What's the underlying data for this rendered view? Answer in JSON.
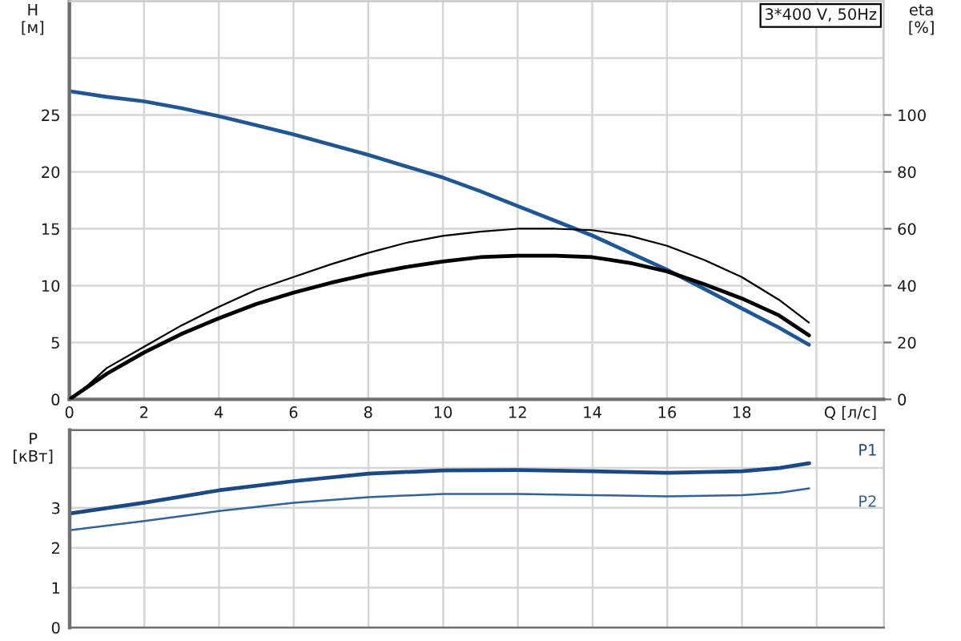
{
  "chart_data": [
    {
      "type": "line",
      "title": "3*400 V, 50Hz",
      "xlabel": "Q [л/с]",
      "ylabel": "H\n[м]",
      "y2label": "eta\n[%]",
      "xlim": [
        0,
        21.8
      ],
      "xticks": [
        0,
        2,
        4,
        6,
        8,
        10,
        12,
        14,
        16,
        18,
        {
          "value": 20,
          "label": null
        }
      ],
      "ylim": [
        0,
        35
      ],
      "yticks": [
        0,
        5,
        10,
        15,
        20,
        25,
        {
          "value": 30,
          "label": null
        }
      ],
      "y2lim": [
        0,
        140
      ],
      "y2ticks": [
        0,
        20,
        40,
        60,
        80,
        100
      ],
      "grid": true,
      "series": [
        {
          "color": "#1f5796",
          "x": [
            0,
            1,
            2,
            3,
            4,
            5,
            6,
            7,
            8,
            9,
            10,
            11,
            12,
            13,
            14,
            15,
            16,
            17,
            18,
            19,
            19.8
          ],
          "values": [
            27.1,
            26.6,
            26.2,
            25.6,
            24.9,
            24.1,
            23.3,
            22.4,
            21.5,
            20.5,
            19.5,
            18.3,
            17.0,
            15.7,
            14.4,
            12.9,
            11.4,
            9.7,
            8.0,
            6.3,
            4.8
          ]
        },
        {
          "color": "#000000",
          "axis": "y2",
          "x": [
            0,
            0.5,
            1,
            2,
            3,
            4,
            5,
            6,
            7,
            8,
            9,
            10,
            11,
            12,
            13,
            14,
            15,
            16,
            17,
            18,
            19,
            19.8
          ],
          "values": [
            0,
            5,
            11,
            18.5,
            26,
            32.5,
            38.5,
            43,
            47.5,
            51.5,
            55,
            57.5,
            59,
            60,
            60,
            59.5,
            57.5,
            54,
            49,
            43,
            35,
            27
          ]
        },
        {
          "color": "#000000",
          "axis": "y2",
          "x": [
            0,
            0.5,
            1,
            2,
            3,
            4,
            5,
            6,
            7,
            8,
            9,
            10,
            11,
            12,
            13,
            14,
            15,
            16,
            17,
            18,
            19,
            19.8
          ],
          "values": [
            0,
            4.5,
            9,
            16.5,
            23,
            28.5,
            33.5,
            37.5,
            41,
            44,
            46.5,
            48.5,
            50,
            50.5,
            50.5,
            50,
            48,
            45,
            40.5,
            35.5,
            29.5,
            22.5
          ]
        }
      ]
    },
    {
      "type": "line",
      "ylabel": "P\n[кВт]",
      "xlim": [
        0,
        21.8
      ],
      "xticks": [
        0,
        2,
        4,
        6,
        8,
        10,
        12,
        14,
        16,
        18,
        {
          "value": 20,
          "label": null
        }
      ],
      "ylim": [
        0,
        4.95
      ],
      "yticks": [
        0,
        1,
        2,
        3,
        {
          "value": 4,
          "label": null
        }
      ],
      "tick_labels": "y",
      "grid": true,
      "series": [
        {
          "name": "P1",
          "color": "#1a4a86",
          "x": [
            0,
            2,
            4,
            6,
            8,
            10,
            12,
            14,
            16,
            18,
            19,
            19.8
          ],
          "values": [
            2.86,
            3.13,
            3.44,
            3.67,
            3.86,
            3.94,
            3.95,
            3.92,
            3.88,
            3.92,
            4.0,
            4.12
          ]
        },
        {
          "name": "P2",
          "color": "#2f639a",
          "x": [
            0,
            2,
            4,
            6,
            8,
            10,
            12,
            14,
            16,
            18,
            19,
            19.8
          ],
          "values": [
            2.44,
            2.67,
            2.92,
            3.13,
            3.27,
            3.35,
            3.35,
            3.32,
            3.29,
            3.32,
            3.38,
            3.49
          ]
        }
      ]
    }
  ]
}
